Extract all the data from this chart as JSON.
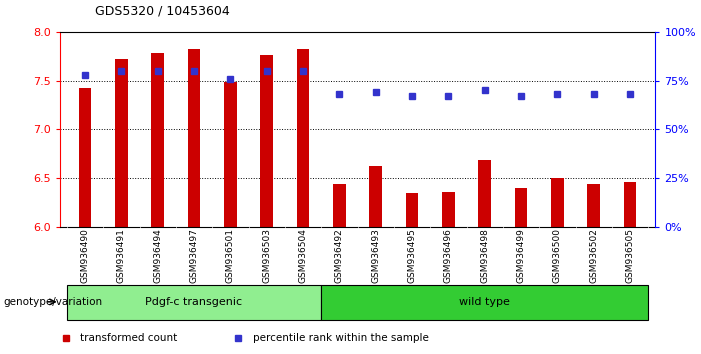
{
  "title": "GDS5320 / 10453604",
  "samples": [
    "GSM936490",
    "GSM936491",
    "GSM936494",
    "GSM936497",
    "GSM936501",
    "GSM936503",
    "GSM936504",
    "GSM936492",
    "GSM936493",
    "GSM936495",
    "GSM936496",
    "GSM936498",
    "GSM936499",
    "GSM936500",
    "GSM936502",
    "GSM936505"
  ],
  "bar_values": [
    7.42,
    7.72,
    7.78,
    7.82,
    7.48,
    7.76,
    7.82,
    6.44,
    6.62,
    6.34,
    6.36,
    6.68,
    6.4,
    6.5,
    6.44,
    6.46
  ],
  "percentile_values": [
    78,
    80,
    80,
    80,
    76,
    80,
    80,
    68,
    69,
    67,
    67,
    70,
    67,
    68,
    68,
    68
  ],
  "bar_color": "#cc0000",
  "dot_color": "#3333cc",
  "ylim_left": [
    6.0,
    8.0
  ],
  "ylim_right": [
    0,
    100
  ],
  "yticks_left": [
    6.0,
    6.5,
    7.0,
    7.5,
    8.0
  ],
  "yticks_right": [
    0,
    25,
    50,
    75,
    100
  ],
  "gridlines": [
    6.5,
    7.0,
    7.5
  ],
  "groups": [
    {
      "label": "Pdgf-c transgenic",
      "start": 0,
      "end": 7,
      "color": "#90ee90"
    },
    {
      "label": "wild type",
      "start": 7,
      "end": 16,
      "color": "#33cc33"
    }
  ],
  "group_label": "genotype/variation",
  "legend_items": [
    {
      "label": "transformed count",
      "color": "#cc0000",
      "marker": "s"
    },
    {
      "label": "percentile rank within the sample",
      "color": "#3333cc",
      "marker": "s"
    }
  ],
  "background_color": "#ffffff",
  "tick_area_color": "#cccccc"
}
